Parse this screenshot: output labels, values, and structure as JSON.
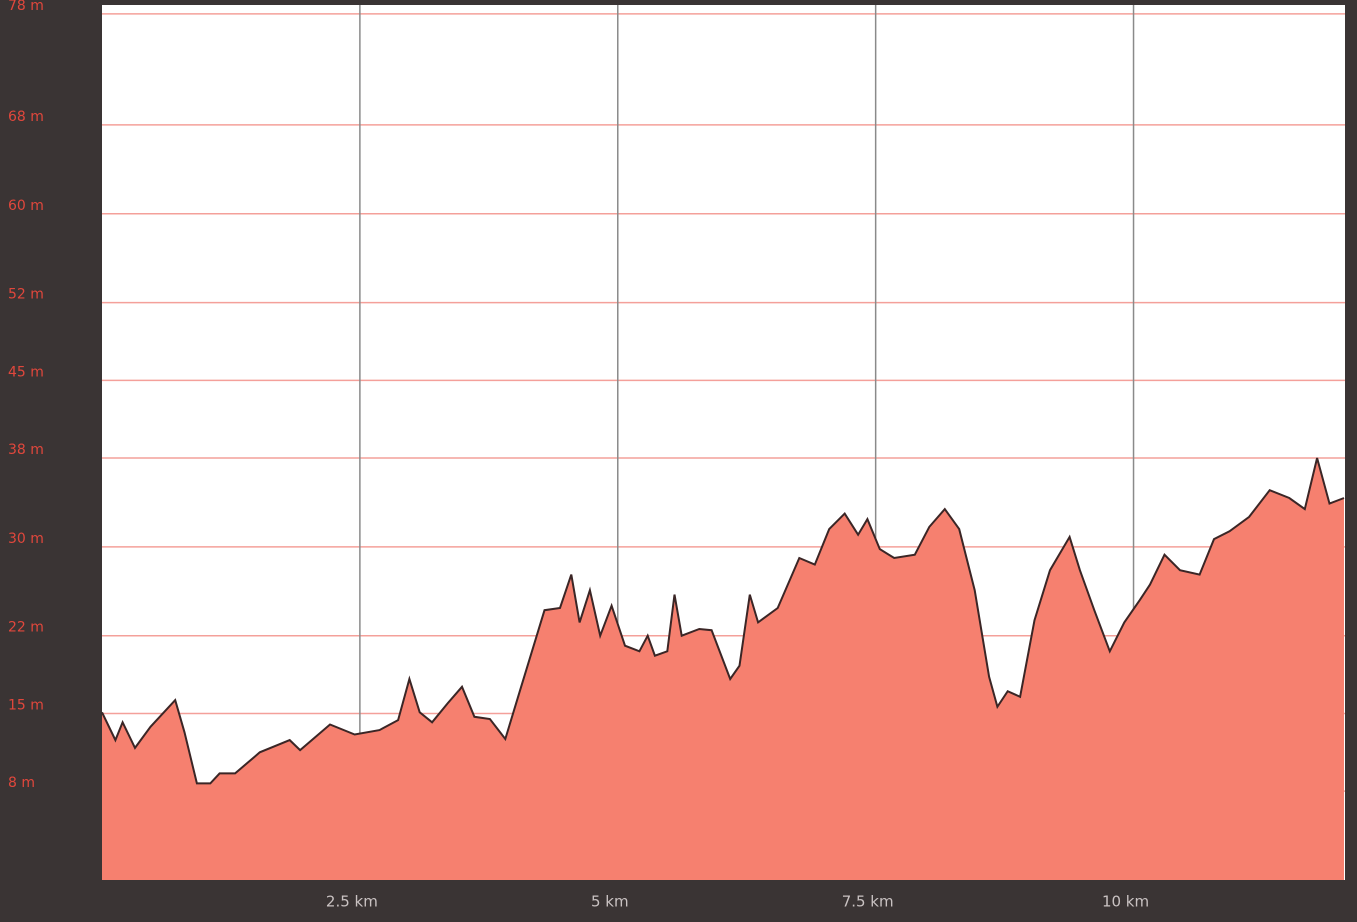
{
  "chart_data": {
    "type": "area",
    "x": [
      0,
      0.13,
      0.2,
      0.32,
      0.47,
      0.71,
      0.8,
      0.92,
      1.05,
      1.14,
      1.29,
      1.53,
      1.82,
      1.92,
      2.21,
      2.45,
      2.69,
      2.87,
      2.98,
      3.08,
      3.2,
      3.35,
      3.49,
      3.61,
      3.76,
      3.91,
      4.05,
      4.29,
      4.44,
      4.55,
      4.63,
      4.73,
      4.83,
      4.94,
      5.07,
      5.21,
      5.29,
      5.36,
      5.48,
      5.55,
      5.62,
      5.79,
      5.91,
      6.09,
      6.18,
      6.28,
      6.36,
      6.55,
      6.76,
      6.91,
      7.05,
      7.2,
      7.33,
      7.42,
      7.54,
      7.68,
      7.88,
      8.02,
      8.17,
      8.31,
      8.46,
      8.6,
      8.68,
      8.78,
      8.9,
      9.04,
      9.19,
      9.38,
      9.48,
      9.62,
      9.77,
      9.91,
      10.06,
      10.16,
      10.3,
      10.45,
      10.64,
      10.78,
      10.93,
      11.12,
      11.32,
      11.51,
      11.66,
      11.78,
      11.9,
      12.04
    ],
    "series": [
      {
        "color": "#f6806f",
        "values": [
          15.1,
          12.6,
          14.2,
          11.9,
          13.8,
          16.2,
          13.3,
          8.7,
          8.7,
          9.6,
          9.6,
          11.5,
          12.6,
          11.7,
          14.0,
          13.1,
          13.5,
          14.4,
          18.1,
          15.1,
          14.2,
          15.9,
          17.4,
          14.7,
          14.5,
          12.7,
          17.0,
          24.3,
          24.5,
          27.5,
          23.2,
          26.1,
          22.0,
          24.7,
          21.1,
          20.6,
          22.0,
          20.2,
          20.6,
          25.7,
          22.0,
          22.6,
          22.5,
          18.1,
          19.3,
          25.7,
          23.2,
          24.5,
          29.0,
          28.4,
          31.6,
          33.0,
          31.1,
          32.5,
          29.8,
          29.0,
          29.3,
          31.8,
          33.4,
          31.6,
          26.1,
          18.3,
          15.6,
          17.0,
          16.5,
          23.4,
          27.9,
          30.9,
          27.9,
          24.3,
          20.6,
          23.2,
          25.2,
          26.6,
          29.3,
          27.9,
          27.5,
          30.7,
          31.4,
          32.7,
          35.1,
          34.4,
          33.4,
          38.0,
          33.9,
          34.4
        ]
      }
    ],
    "xlim": [
      0,
      12.05
    ],
    "xticks": [
      {
        "value": 2.5,
        "label": "2.5 km"
      },
      {
        "value": 5,
        "label": "5 km"
      },
      {
        "value": 7.5,
        "label": "7.5 km"
      },
      {
        "value": 10,
        "label": "10 km"
      }
    ],
    "ylim": [
      0,
      78.8
    ],
    "yticks": [
      {
        "value": 78,
        "label": "78 m"
      },
      {
        "value": 68,
        "label": "68 m"
      },
      {
        "value": 60,
        "label": "60 m"
      },
      {
        "value": 52,
        "label": "52 m"
      },
      {
        "value": 45,
        "label": "45 m"
      },
      {
        "value": 38,
        "label": "38 m"
      },
      {
        "value": 30,
        "label": "30 m"
      },
      {
        "value": 22,
        "label": "22 m"
      },
      {
        "value": 15,
        "label": "15 m"
      },
      {
        "value": 8,
        "label": "8 m"
      }
    ],
    "grid": true
  }
}
